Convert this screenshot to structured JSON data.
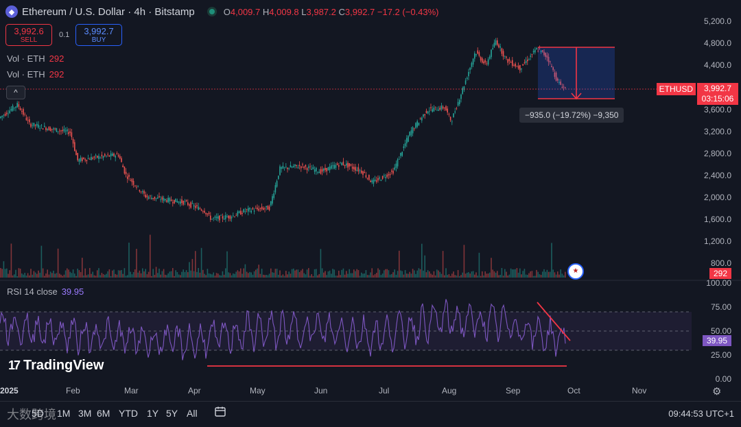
{
  "header": {
    "title": "Ethereum / U.S. Dollar · 4h · Bitstamp",
    "o_label": "O",
    "o_value": "4,009.7",
    "h_label": "H",
    "h_value": "4,009.8",
    "l_label": "L",
    "l_value": "3,987.2",
    "c_label": "C",
    "c_value": "3,992.7",
    "change": "−17.2 (−0.43%)"
  },
  "trade": {
    "sell_price": "3,992.6",
    "sell_label": "SELL",
    "spread": "0.1",
    "buy_price": "3,992.7",
    "buy_label": "BUY"
  },
  "volume_rows": [
    {
      "label": "Vol · ETH",
      "value": "292"
    },
    {
      "label": "Vol · ETH",
      "value": "292"
    }
  ],
  "price_axis": [
    "5,200.0",
    "4,800.0",
    "4,400.0",
    "3,600.0",
    "3,200.0",
    "2,800.0",
    "2,400.0",
    "2,000.0",
    "1,600.0",
    "1,200.0",
    "800.0"
  ],
  "rsi_axis": [
    "100.00",
    "75.00",
    "50.00",
    "25.00",
    "0.00"
  ],
  "x_axis": [
    "2025",
    "Feb",
    "Mar",
    "Apr",
    "May",
    "Jun",
    "Jul",
    "Aug",
    "Sep",
    "Oct",
    "Nov"
  ],
  "last_price": {
    "symbol": "ETHUSD",
    "price": "3,992.7",
    "countdown": "03:15:06"
  },
  "volume_tag": "292",
  "rsi": {
    "label": "RSI 14 close",
    "value": "39.95",
    "tag": "39.95"
  },
  "measure_label": "−935.0 (−19.72%) −9,350",
  "brand": "TradingView",
  "timeframes": [
    "1D",
    "5D",
    "1M",
    "3M",
    "6M",
    "YTD",
    "1Y",
    "5Y",
    "All"
  ],
  "clock": "09:44:53 UTC+1",
  "watermark": "大数跨境",
  "colors": {
    "bg": "#131722",
    "up": "#26a69a",
    "down": "#ef5350",
    "rsi": "#7e57c2",
    "accent": "#f23645"
  },
  "chart_data": {
    "type": "line",
    "title": "Ethereum / U.S. Dollar · 4h · Bitstamp",
    "x": [
      "2025",
      "Feb",
      "Mar",
      "Apr",
      "May",
      "Jun",
      "Jul",
      "Aug",
      "Sep",
      "Oct"
    ],
    "series": [
      {
        "name": "ETHUSD",
        "values": [
          3450,
          3300,
          2800,
          2100,
          1750,
          2500,
          2550,
          3500,
          4400,
          3993
        ]
      },
      {
        "name": "RSI 14 close",
        "values": [
          55,
          48,
          42,
          38,
          50,
          52,
          45,
          62,
          58,
          40
        ]
      }
    ],
    "ylim": [
      600,
      5300
    ]
  }
}
